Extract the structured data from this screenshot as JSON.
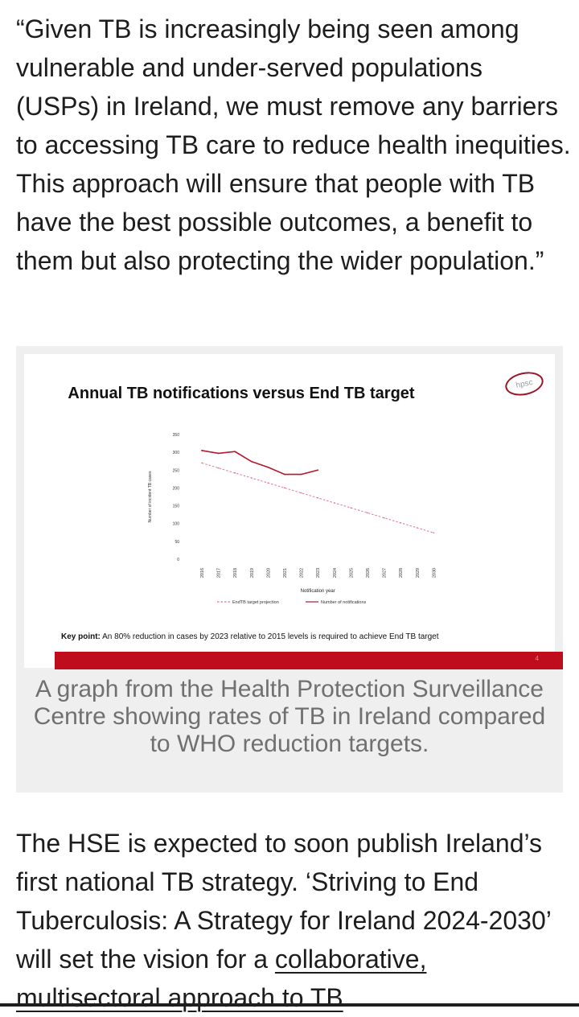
{
  "article": {
    "quote": "“Given TB is increasingly being seen among vulnerable and under-served populations (USPs) in Ireland, we must remove any barriers to accessing TB care to reduce health inequities. This approach will ensure that people with TB have the best possible outcomes, a benefit to them but also protecting the wider population.”",
    "paragraph2_main": "The HSE is expected to soon publish Ireland’s first national TB strategy. ‘Striving to End Tuberculosis: A Strategy for Ireland 2024-2030’ will set the vision for a ",
    "paragraph2_cut": "collaborative, multisectoral approach to TB"
  },
  "figure": {
    "logo_text": "hpsc",
    "key_point_label": "Key point:",
    "key_point_text": " An 80% reduction in cases by 2023 relative to 2015 levels is required to achieve End TB target",
    "slide_number": "4",
    "caption": "A graph from the Health Protection Surveillance Centre showing rates of TB in Ireland compared to WHO reduction targets."
  },
  "colors": {
    "notifications_line": "#b5172b",
    "target_line": "#e07a8e",
    "red_bar": "#c00d1e"
  },
  "chart_data": {
    "type": "line",
    "title": "Annual TB notifications versus End TB target",
    "xlabel": "Notification year",
    "ylabel": "Number of incident TB cases",
    "x": [
      "2016",
      "2017",
      "2018",
      "2019",
      "2020",
      "2021",
      "2022",
      "2023",
      "2024",
      "2025",
      "2026",
      "2027",
      "2028",
      "2029",
      "2030"
    ],
    "ylim": [
      0,
      350
    ],
    "yticks": [
      0,
      50,
      100,
      150,
      200,
      250,
      300,
      350
    ],
    "series": [
      {
        "name": "EndTB target projection",
        "style": "dashed",
        "color": "#e07a8e",
        "values": [
          270,
          256,
          242,
          228,
          214,
          200,
          186,
          172,
          158,
          144,
          130,
          116,
          102,
          88,
          74
        ]
      },
      {
        "name": "Number of notifications",
        "style": "solid",
        "color": "#b5172b",
        "values": [
          305,
          297,
          302,
          274,
          258,
          238,
          238,
          250,
          null,
          null,
          null,
          null,
          null,
          null,
          null
        ]
      }
    ],
    "grid": false,
    "legend_position": "bottom"
  }
}
